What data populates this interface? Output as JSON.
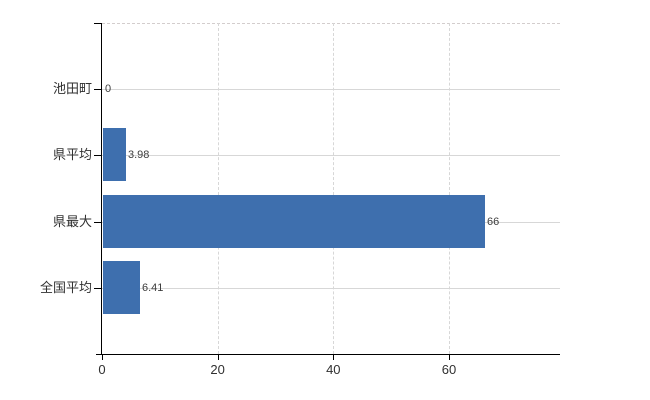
{
  "chart_data": {
    "type": "bar",
    "orientation": "horizontal",
    "title": "",
    "xlabel": "",
    "ylabel": "",
    "categories": [
      "池田町",
      "県平均",
      "県最大",
      "全国平均"
    ],
    "values": [
      0,
      3.98,
      66,
      6.41
    ],
    "value_labels": [
      "0",
      "3.98",
      "66",
      "6.41"
    ],
    "x_ticks": [
      0,
      20,
      40,
      60
    ],
    "x_tick_labels": [
      "0",
      "20",
      "40",
      "60"
    ],
    "xlim": [
      0,
      79.2
    ],
    "legend": false,
    "grid": {
      "vertical": "dashed",
      "horizontal": "solid-at-category-centers",
      "plot_top_border": "dashed"
    }
  },
  "colors": {
    "background": "#ffffff",
    "bar": "#3e6fae",
    "grid": "#d7d7d7",
    "plot_border_dashed": "#d3cdcd",
    "axis": "#000000",
    "category_text": "#303030",
    "value_text": "#3d3d3d",
    "tick_text": "#303030"
  }
}
